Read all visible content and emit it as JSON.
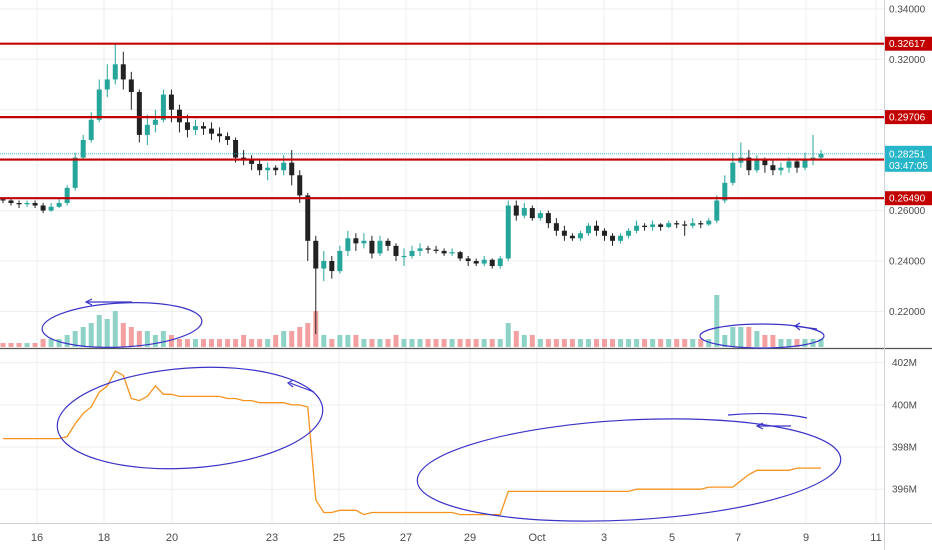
{
  "colors": {
    "up": "#26a69a",
    "down": "#222222",
    "vol_up": "#8fd3c6",
    "vol_down": "#f2a0a0",
    "level": "#c30000",
    "current": "#26b5c9",
    "obv": "#f7931e",
    "annotation": "#3b34c7",
    "grid": "#eceff2",
    "axis_text": "#4a4a4a"
  },
  "chart_data": [
    {
      "type": "candlestick",
      "panel": "price",
      "x_labels": [
        "16",
        "18",
        "20",
        "23",
        "25",
        "27",
        "29",
        "Oct",
        "3",
        "5",
        "7",
        "9",
        "11"
      ],
      "y_ticks": [
        "0.34000",
        "0.32000",
        "0.30000",
        "0.28000",
        "0.26000",
        "0.24000",
        "0.22000"
      ],
      "ylim": [
        0.2055,
        0.3435
      ],
      "horizontal_levels": [
        {
          "label": "0.32617",
          "value": 0.32617
        },
        {
          "label": "0.29706",
          "value": 0.29706
        },
        {
          "label": "0.28022",
          "value": 0.28022
        },
        {
          "label": "0.26490",
          "value": 0.2649
        }
      ],
      "current_price": {
        "label": "0.28251",
        "value": 0.28251,
        "countdown": "03:47:05"
      },
      "candles": [
        [
          0.2645,
          0.264,
          0.263,
          0.265
        ],
        [
          0.264,
          0.263,
          0.262,
          0.265
        ],
        [
          0.263,
          0.2625,
          0.261,
          0.264
        ],
        [
          0.2625,
          0.263,
          0.2615,
          0.264
        ],
        [
          0.263,
          0.262,
          0.261,
          0.264
        ],
        [
          0.262,
          0.26,
          0.259,
          0.263
        ],
        [
          0.26,
          0.2615,
          0.2595,
          0.263
        ],
        [
          0.2615,
          0.263,
          0.261,
          0.265
        ],
        [
          0.263,
          0.269,
          0.262,
          0.27
        ],
        [
          0.269,
          0.281,
          0.268,
          0.283
        ],
        [
          0.281,
          0.288,
          0.28,
          0.29
        ],
        [
          0.288,
          0.296,
          0.287,
          0.299
        ],
        [
          0.296,
          0.308,
          0.295,
          0.312
        ],
        [
          0.308,
          0.312,
          0.305,
          0.318
        ],
        [
          0.312,
          0.318,
          0.31,
          0.326
        ],
        [
          0.318,
          0.312,
          0.308,
          0.323
        ],
        [
          0.312,
          0.307,
          0.3,
          0.315
        ],
        [
          0.307,
          0.29,
          0.287,
          0.308
        ],
        [
          0.29,
          0.294,
          0.286,
          0.298
        ],
        [
          0.294,
          0.296,
          0.291,
          0.3
        ],
        [
          0.296,
          0.306,
          0.295,
          0.308
        ],
        [
          0.306,
          0.3,
          0.295,
          0.308
        ],
        [
          0.3,
          0.295,
          0.291,
          0.302
        ],
        [
          0.295,
          0.292,
          0.289,
          0.298
        ],
        [
          0.292,
          0.2935,
          0.29,
          0.296
        ],
        [
          0.2935,
          0.2925,
          0.29,
          0.295
        ],
        [
          0.2925,
          0.2905,
          0.288,
          0.295
        ],
        [
          0.2905,
          0.2895,
          0.287,
          0.293
        ],
        [
          0.2895,
          0.288,
          0.286,
          0.291
        ],
        [
          0.288,
          0.281,
          0.279,
          0.289
        ],
        [
          0.281,
          0.28,
          0.278,
          0.284
        ],
        [
          0.28,
          0.2785,
          0.276,
          0.282
        ],
        [
          0.2785,
          0.276,
          0.274,
          0.28
        ],
        [
          0.276,
          0.277,
          0.272,
          0.279
        ],
        [
          0.277,
          0.276,
          0.274,
          0.278
        ],
        [
          0.276,
          0.279,
          0.274,
          0.282
        ],
        [
          0.279,
          0.274,
          0.27,
          0.284
        ],
        [
          0.274,
          0.266,
          0.263,
          0.276
        ],
        [
          0.266,
          0.248,
          0.24,
          0.267
        ],
        [
          0.248,
          0.237,
          0.211,
          0.25
        ],
        [
          0.237,
          0.24,
          0.232,
          0.244
        ],
        [
          0.24,
          0.236,
          0.233,
          0.242
        ],
        [
          0.236,
          0.244,
          0.235,
          0.246
        ],
        [
          0.244,
          0.249,
          0.242,
          0.252
        ],
        [
          0.249,
          0.247,
          0.244,
          0.251
        ],
        [
          0.247,
          0.248,
          0.245,
          0.251
        ],
        [
          0.248,
          0.243,
          0.241,
          0.25
        ],
        [
          0.243,
          0.248,
          0.242,
          0.25
        ],
        [
          0.248,
          0.246,
          0.244,
          0.249
        ],
        [
          0.246,
          0.242,
          0.24,
          0.247
        ],
        [
          0.242,
          0.242,
          0.238,
          0.245
        ],
        [
          0.242,
          0.244,
          0.241,
          0.246
        ],
        [
          0.244,
          0.245,
          0.242,
          0.247
        ],
        [
          0.245,
          0.2445,
          0.243,
          0.246
        ],
        [
          0.2445,
          0.244,
          0.243,
          0.246
        ],
        [
          0.244,
          0.243,
          0.242,
          0.245
        ],
        [
          0.243,
          0.2435,
          0.242,
          0.245
        ],
        [
          0.2435,
          0.241,
          0.24,
          0.244
        ],
        [
          0.241,
          0.24,
          0.238,
          0.242
        ],
        [
          0.24,
          0.239,
          0.238,
          0.241
        ],
        [
          0.239,
          0.2405,
          0.238,
          0.242
        ],
        [
          0.2405,
          0.238,
          0.237,
          0.241
        ],
        [
          0.238,
          0.241,
          0.237,
          0.242
        ],
        [
          0.241,
          0.262,
          0.24,
          0.264
        ],
        [
          0.262,
          0.258,
          0.256,
          0.264
        ],
        [
          0.258,
          0.261,
          0.257,
          0.263
        ],
        [
          0.261,
          0.257,
          0.256,
          0.262
        ],
        [
          0.257,
          0.259,
          0.256,
          0.26
        ],
        [
          0.259,
          0.255,
          0.253,
          0.26
        ],
        [
          0.255,
          0.252,
          0.25,
          0.257
        ],
        [
          0.252,
          0.25,
          0.248,
          0.254
        ],
        [
          0.25,
          0.249,
          0.248,
          0.251
        ],
        [
          0.249,
          0.251,
          0.248,
          0.252
        ],
        [
          0.251,
          0.254,
          0.25,
          0.255
        ],
        [
          0.254,
          0.252,
          0.25,
          0.256
        ],
        [
          0.252,
          0.25,
          0.248,
          0.253
        ],
        [
          0.25,
          0.248,
          0.246,
          0.251
        ],
        [
          0.248,
          0.25,
          0.247,
          0.251
        ],
        [
          0.25,
          0.252,
          0.249,
          0.253
        ],
        [
          0.252,
          0.254,
          0.251,
          0.256
        ],
        [
          0.254,
          0.2535,
          0.252,
          0.255
        ],
        [
          0.2535,
          0.2545,
          0.252,
          0.256
        ],
        [
          0.2545,
          0.2535,
          0.252,
          0.255
        ],
        [
          0.2535,
          0.255,
          0.253,
          0.256
        ],
        [
          0.255,
          0.2545,
          0.253,
          0.256
        ],
        [
          0.2545,
          0.254,
          0.25,
          0.256
        ],
        [
          0.254,
          0.255,
          0.253,
          0.257
        ],
        [
          0.255,
          0.2545,
          0.253,
          0.256
        ],
        [
          0.2545,
          0.256,
          0.254,
          0.257
        ],
        [
          0.256,
          0.264,
          0.255,
          0.266
        ],
        [
          0.264,
          0.271,
          0.263,
          0.274
        ],
        [
          0.271,
          0.279,
          0.27,
          0.283
        ],
        [
          0.279,
          0.281,
          0.277,
          0.287
        ],
        [
          0.281,
          0.276,
          0.274,
          0.284
        ],
        [
          0.276,
          0.28,
          0.275,
          0.282
        ],
        [
          0.28,
          0.278,
          0.275,
          0.281
        ],
        [
          0.278,
          0.276,
          0.274,
          0.28
        ],
        [
          0.276,
          0.277,
          0.274,
          0.279
        ],
        [
          0.277,
          0.2795,
          0.275,
          0.281
        ],
        [
          0.2795,
          0.277,
          0.275,
          0.28
        ],
        [
          0.277,
          0.28,
          0.276,
          0.283
        ],
        [
          0.28,
          0.281,
          0.278,
          0.29
        ],
        [
          0.281,
          0.2825,
          0.28,
          0.284
        ]
      ],
      "volume": [
        1,
        1,
        1,
        1,
        1,
        2,
        2,
        2,
        3,
        4,
        5,
        6,
        8,
        7,
        9,
        6,
        5,
        4,
        4,
        3,
        4,
        3,
        2,
        2,
        2,
        2,
        2,
        2,
        2,
        2,
        3,
        2,
        2,
        2,
        3,
        4,
        4,
        5,
        6,
        9,
        3,
        2,
        3,
        3,
        3,
        2,
        2,
        2,
        2,
        3,
        2,
        2,
        2,
        2,
        2,
        2,
        2,
        2,
        2,
        2,
        2,
        2,
        2,
        6,
        4,
        3,
        3,
        2,
        2,
        2,
        2,
        2,
        2,
        2,
        2,
        2,
        2,
        2,
        2,
        2,
        2,
        2,
        2,
        2,
        2,
        2,
        2,
        2,
        2,
        13,
        3,
        5,
        5,
        5,
        4,
        3,
        3,
        2,
        2,
        2,
        2,
        2,
        2
      ]
    },
    {
      "type": "line",
      "panel": "volume-indicator",
      "y_ticks": [
        "402M",
        "400M",
        "398M",
        "396M"
      ],
      "ylim": [
        394.4,
        402.6
      ],
      "unit": "M",
      "x_labels": [
        "16",
        "18",
        "20",
        "23",
        "25",
        "27",
        "29",
        "Oct",
        "3",
        "5",
        "7",
        "9",
        "11"
      ],
      "x": [
        0,
        1,
        2,
        3,
        4,
        5,
        6,
        7,
        8,
        9,
        10,
        11,
        12,
        13,
        14,
        15,
        16,
        17,
        18,
        19,
        20,
        21,
        22,
        23,
        24,
        25,
        26,
        27,
        28,
        29,
        30,
        31,
        32,
        33,
        34,
        35,
        36,
        37,
        38,
        39,
        40,
        41,
        42,
        43,
        44,
        45,
        46,
        47,
        48,
        49,
        50,
        51,
        52,
        53,
        54,
        55,
        56,
        57,
        58,
        59,
        60,
        61,
        62,
        63,
        64,
        65,
        66,
        67,
        68,
        69,
        70,
        71,
        72,
        73,
        74,
        75,
        76,
        77,
        78,
        79,
        80,
        81,
        82,
        83,
        84,
        85,
        86,
        87,
        88,
        89,
        90,
        91,
        92,
        93,
        94,
        95,
        96,
        97,
        98,
        99,
        100,
        101,
        102
      ],
      "values": [
        398.4,
        398.4,
        398.4,
        398.4,
        398.4,
        398.4,
        398.4,
        398.4,
        398.5,
        399.1,
        399.6,
        399.9,
        400.6,
        400.9,
        401.6,
        401.4,
        400.3,
        400.2,
        400.4,
        400.9,
        400.5,
        400.5,
        400.4,
        400.4,
        400.4,
        400.4,
        400.4,
        400.4,
        400.3,
        400.3,
        400.2,
        400.2,
        400.1,
        400.1,
        400.1,
        400.1,
        400.0,
        400.0,
        399.9,
        395.5,
        394.9,
        394.9,
        395.0,
        395.0,
        395.0,
        394.8,
        394.9,
        394.9,
        394.9,
        394.9,
        394.9,
        394.9,
        394.9,
        394.9,
        394.9,
        394.9,
        394.9,
        394.8,
        394.8,
        394.8,
        394.8,
        394.8,
        394.8,
        395.9,
        395.9,
        395.9,
        395.9,
        395.9,
        395.9,
        395.9,
        395.9,
        395.9,
        395.9,
        395.9,
        395.9,
        395.9,
        395.9,
        395.9,
        395.9,
        396.0,
        396.0,
        396.0,
        396.0,
        396.0,
        396.0,
        396.0,
        396.0,
        396.0,
        396.1,
        396.1,
        396.1,
        396.1,
        396.4,
        396.7,
        396.9,
        396.9,
        396.9,
        396.9,
        396.9,
        397.0,
        397.0,
        397.0,
        397.0
      ]
    }
  ]
}
